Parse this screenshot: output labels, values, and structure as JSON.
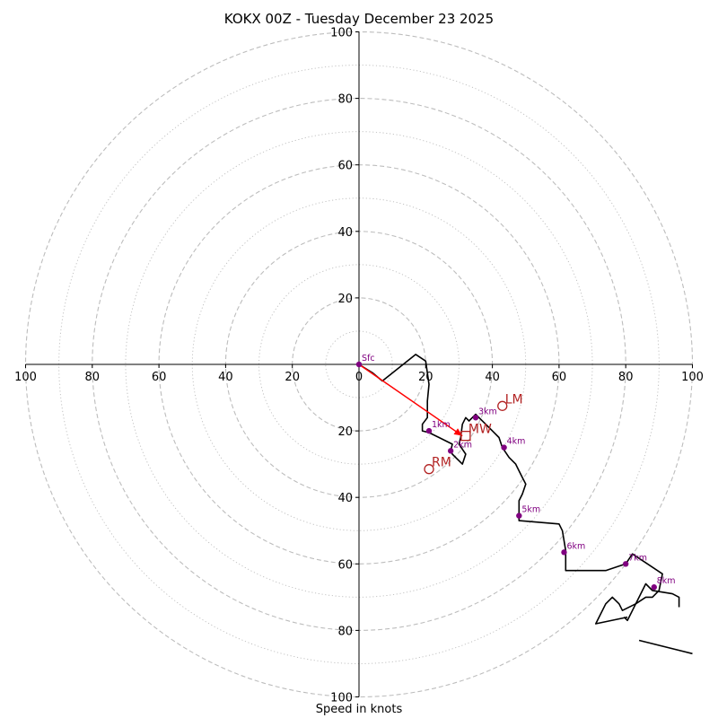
{
  "chart_data": {
    "type": "hodograph",
    "title": "KOKX 00Z - Tuesday December 23 2025",
    "xlabel": "Speed in knots",
    "xlim": [
      -100,
      100
    ],
    "ylim": [
      -100,
      100
    ],
    "range_rings": {
      "major": [
        20,
        40,
        60,
        80,
        100
      ],
      "minor": [
        10,
        30,
        50,
        70,
        90
      ]
    },
    "x_ticks": [
      {
        "value": -100,
        "label": "100"
      },
      {
        "value": -80,
        "label": "80"
      },
      {
        "value": -60,
        "label": "60"
      },
      {
        "value": -40,
        "label": "40"
      },
      {
        "value": -20,
        "label": "20"
      },
      {
        "value": 0,
        "label": "0"
      },
      {
        "value": 20,
        "label": "20"
      },
      {
        "value": 40,
        "label": "40"
      },
      {
        "value": 60,
        "label": "60"
      },
      {
        "value": 80,
        "label": "80"
      },
      {
        "value": 100,
        "label": "100"
      }
    ],
    "y_ticks": [
      {
        "value": 100,
        "label": "100"
      },
      {
        "value": 80,
        "label": "80"
      },
      {
        "value": 60,
        "label": "60"
      },
      {
        "value": 40,
        "label": "40"
      },
      {
        "value": 20,
        "label": "20"
      },
      {
        "value": -20,
        "label": "20"
      },
      {
        "value": -40,
        "label": "40"
      },
      {
        "value": -60,
        "label": "60"
      },
      {
        "value": -80,
        "label": "80"
      },
      {
        "value": -100,
        "label": "100"
      }
    ],
    "trace": {
      "u": [
        0,
        4,
        7,
        17,
        20,
        21,
        20.5,
        20.5,
        19,
        19,
        21,
        24,
        28,
        27.5,
        28,
        31,
        32,
        30,
        30.5,
        31,
        32,
        33,
        34,
        35,
        36,
        38,
        40,
        42,
        43,
        45,
        47,
        48,
        49,
        50,
        49,
        48,
        48,
        48,
        60,
        61,
        62,
        62,
        74,
        80,
        82,
        85,
        91,
        90,
        88,
        86,
        83,
        79,
        78,
        76,
        74,
        71,
        80.5
      ],
      "v": [
        0,
        -2.5,
        -5,
        3,
        1,
        -6,
        -11,
        -16,
        -18,
        -20,
        -20.5,
        -22,
        -24,
        -26,
        -27,
        -30,
        -27,
        -24,
        -22,
        -18,
        -16,
        -17,
        -16,
        -15,
        -16,
        -18,
        -20,
        -22,
        -25,
        -28,
        -30,
        -32,
        -34,
        -36,
        -39,
        -41,
        -43,
        -47,
        -48,
        -50,
        -56,
        -62,
        -62,
        -60,
        -57,
        -59,
        -63,
        -68,
        -70,
        -70,
        -72,
        -74,
        -72,
        -70,
        -72,
        -78,
        -76
      ]
    },
    "trace_extra": {
      "u": [
        96,
        96,
        94,
        88,
        86,
        80.5,
        79.5
      ],
      "v": [
        -73,
        -70,
        -69,
        -68,
        -66,
        -77,
        -76
      ]
    },
    "trace_tail": {
      "u": [
        84,
        100
      ],
      "v": [
        -83,
        -87
      ]
    },
    "heights": [
      {
        "label": "Sfc",
        "u": 0,
        "v": 0
      },
      {
        "label": "1km",
        "u": 21,
        "v": -20
      },
      {
        "label": "2km",
        "u": 27.5,
        "v": -26
      },
      {
        "label": "3km",
        "u": 35,
        "v": -16
      },
      {
        "label": "4km",
        "u": 43.5,
        "v": -25
      },
      {
        "label": "5km",
        "u": 48,
        "v": -45.5
      },
      {
        "label": "6km",
        "u": 61.5,
        "v": -56.5
      },
      {
        "label": "7km",
        "u": 80,
        "v": -60
      },
      {
        "label": "8km",
        "u": 88.5,
        "v": -67
      }
    ],
    "shear_vector": {
      "u0": 0,
      "v0": 0,
      "u1": 31,
      "v1": -21.5
    },
    "storm_motions": [
      {
        "label": "LM",
        "u": 43,
        "v": -12.5,
        "marker": "circle"
      },
      {
        "label": "MW",
        "u": 32,
        "v": -21.5,
        "marker": "square"
      },
      {
        "label": "RM",
        "u": 21,
        "v": -31.5,
        "marker": "circle"
      }
    ],
    "colors": {
      "trace": "#000000",
      "height_marker": "#800080",
      "shear": "#ff0000",
      "motion": "#b22222",
      "ring": "#bdbdbd",
      "axis": "#000000"
    }
  }
}
